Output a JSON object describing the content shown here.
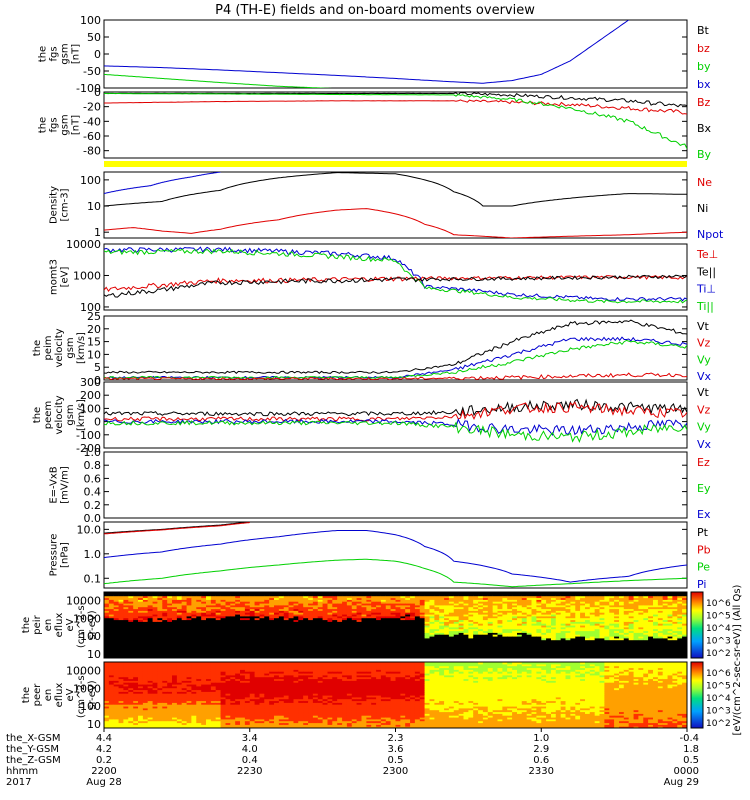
{
  "title": "P4 (TH-E) fields and on-board moments overview",
  "colors": {
    "black": "#000000",
    "red": "#e00000",
    "green": "#00d000",
    "blue": "#0000d0",
    "yellow": "#ffff00"
  },
  "chart_data": [
    {
      "id": "fgs-gsm",
      "type": "line",
      "ylabel": [
        "the",
        "fgs",
        "gsm",
        "[nT]"
      ],
      "ylim": [
        -100,
        100
      ],
      "yticks": [
        "100",
        "50",
        "0",
        "-50",
        "-100"
      ],
      "ytick_values": [
        100,
        50,
        0,
        -50,
        -100
      ],
      "legend": [
        {
          "text": "Bt",
          "color": "black"
        },
        {
          "text": "bz",
          "color": "red"
        },
        {
          "text": "by",
          "color": "green"
        },
        {
          "text": "bx",
          "color": "blue"
        }
      ],
      "series": [
        {
          "color": "blue",
          "x": [
            0,
            0.1,
            0.2,
            0.3,
            0.4,
            0.5,
            0.6,
            0.65,
            0.7,
            0.75,
            0.8,
            0.85,
            0.9
          ],
          "y": [
            -35,
            -40,
            -47,
            -55,
            -63,
            -72,
            -82,
            -86,
            -78,
            -60,
            -20,
            40,
            100
          ]
        },
        {
          "color": "green",
          "x": [
            0,
            0.1,
            0.2,
            0.3,
            0.4
          ],
          "y": [
            -60,
            -72,
            -84,
            -95,
            -102
          ]
        }
      ]
    },
    {
      "id": "fgs-gsm-zoom",
      "type": "line",
      "ylabel": [
        "the",
        "fgs",
        "gsm",
        "[nT]"
      ],
      "ylim": [
        -90,
        0
      ],
      "yticks": [
        "0",
        "-20",
        "-40",
        "-60",
        "-80"
      ],
      "ytick_values": [
        0,
        -20,
        -40,
        -60,
        -80
      ],
      "legend": [
        {
          "text": "Bz",
          "color": "red"
        },
        {
          "text": "Bx",
          "color": "black"
        },
        {
          "text": "By",
          "color": "green"
        }
      ],
      "series": [
        {
          "color": "red",
          "x": [
            0,
            0.2,
            0.4,
            0.6,
            0.7,
            0.8,
            0.9,
            1
          ],
          "y": [
            -15,
            -13,
            -12,
            -12,
            -14,
            -17,
            -22,
            -28
          ]
        },
        {
          "color": "black",
          "x": [
            0,
            0.3,
            0.6,
            0.7,
            0.8,
            0.9,
            1
          ],
          "y": [
            -2,
            -2,
            -2,
            -4,
            -8,
            -12,
            -20
          ]
        },
        {
          "color": "green",
          "x": [
            0,
            0.3,
            0.6,
            0.7,
            0.8,
            0.9,
            1
          ],
          "y": [
            -2,
            -3,
            -4,
            -10,
            -22,
            -40,
            -75
          ]
        }
      ]
    },
    {
      "id": "density",
      "type": "line",
      "ylabel": [
        "Density",
        "[cm-3]"
      ],
      "scale": "log",
      "ylim": [
        0.6,
        200
      ],
      "yticks": [
        "100",
        "10",
        "1"
      ],
      "ytick_values": [
        100,
        10,
        1
      ],
      "legend": [
        {
          "text": "Ne",
          "color": "red"
        },
        {
          "text": "Ni",
          "color": "black"
        },
        {
          "text": "Npot",
          "color": "blue"
        }
      ],
      "series": [
        {
          "color": "black",
          "x": [
            0,
            0.1,
            0.2,
            0.3,
            0.4,
            0.5,
            0.55,
            0.6,
            0.65,
            0.7,
            0.8,
            0.9,
            1
          ],
          "y": [
            10,
            15,
            40,
            120,
            190,
            170,
            100,
            35,
            10,
            10,
            20,
            30,
            28
          ]
        },
        {
          "color": "red",
          "x": [
            0,
            0.05,
            0.1,
            0.15,
            0.2,
            0.3,
            0.4,
            0.45,
            0.5,
            0.55,
            0.6,
            0.7,
            0.8,
            0.9,
            1
          ],
          "y": [
            1.2,
            1.5,
            1.1,
            0.9,
            1.3,
            3,
            7,
            8,
            5,
            2,
            0.8,
            0.6,
            0.7,
            0.8,
            1
          ]
        },
        {
          "color": "blue",
          "x": [
            0,
            0.08,
            0.15,
            0.2
          ],
          "y": [
            30,
            60,
            130,
            200
          ]
        }
      ]
    },
    {
      "id": "mom-temp",
      "type": "line",
      "ylabel": [
        "momt3",
        "[eV]"
      ],
      "scale": "log",
      "ylim": [
        80,
        10000
      ],
      "yticks": [
        "10000",
        "1000",
        "100"
      ],
      "ytick_values": [
        10000,
        1000,
        100
      ],
      "legend": [
        {
          "text": "Te⊥",
          "color": "red"
        },
        {
          "text": "Te||",
          "color": "black"
        },
        {
          "text": "Ti⊥",
          "color": "blue"
        },
        {
          "text": "Ti||",
          "color": "green"
        }
      ],
      "series": [
        {
          "color": "blue",
          "x": [
            0,
            0.2,
            0.4,
            0.5,
            0.52,
            0.55,
            0.7,
            0.85,
            1
          ],
          "y": [
            6500,
            6800,
            5000,
            3500,
            1600,
            450,
            250,
            180,
            180
          ]
        },
        {
          "color": "green",
          "x": [
            0,
            0.2,
            0.4,
            0.5,
            0.52,
            0.55,
            0.7,
            0.85,
            1
          ],
          "y": [
            5500,
            6000,
            4000,
            3000,
            1200,
            400,
            200,
            150,
            150
          ]
        },
        {
          "color": "red",
          "x": [
            0,
            0.1,
            0.2,
            0.3,
            0.5,
            0.7,
            0.9,
            1
          ],
          "y": [
            350,
            500,
            700,
            700,
            800,
            850,
            900,
            850
          ]
        },
        {
          "color": "black",
          "x": [
            0,
            0.1,
            0.2,
            0.3,
            0.5,
            0.7,
            0.9,
            1
          ],
          "y": [
            220,
            350,
            600,
            650,
            750,
            800,
            900,
            950
          ]
        }
      ]
    },
    {
      "id": "peim-velocity",
      "type": "line",
      "ylabel": [
        "the",
        "peim",
        "velocity",
        "gsm",
        "[km/s]"
      ],
      "ylim": [
        0,
        25
      ],
      "yticks": [
        "25",
        "20",
        "15",
        "10",
        "5",
        "0"
      ],
      "ytick_values": [
        25,
        20,
        15,
        10,
        5,
        0
      ],
      "legend": [
        {
          "text": "Vt",
          "color": "black"
        },
        {
          "text": "Vz",
          "color": "red"
        },
        {
          "text": "Vy",
          "color": "green"
        },
        {
          "text": "Vx",
          "color": "blue"
        }
      ],
      "series": [
        {
          "color": "black",
          "x": [
            0,
            0.5,
            0.6,
            0.7,
            0.8,
            0.9,
            1
          ],
          "y": [
            3,
            3,
            6,
            15,
            22,
            23,
            18
          ]
        },
        {
          "color": "blue",
          "x": [
            0,
            0.5,
            0.6,
            0.7,
            0.8,
            0.9,
            1
          ],
          "y": [
            1,
            1,
            4,
            10,
            16,
            16,
            14
          ]
        },
        {
          "color": "green",
          "x": [
            0,
            0.5,
            0.6,
            0.7,
            0.8,
            0.9,
            1
          ],
          "y": [
            1,
            1,
            3,
            7,
            12,
            15,
            13
          ]
        },
        {
          "color": "red",
          "x": [
            0,
            0.5,
            0.7,
            0.9,
            1
          ],
          "y": [
            0.5,
            0.5,
            1,
            2,
            2
          ]
        }
      ]
    },
    {
      "id": "peem-velocity",
      "type": "line",
      "ylabel": [
        "the",
        "peem",
        "velocity",
        "gsm",
        "[km/s]"
      ],
      "ylim": [
        -200,
        300
      ],
      "yticks": [
        "300",
        "200",
        "100",
        "0",
        "-100",
        "-200"
      ],
      "ytick_values": [
        300,
        200,
        100,
        0,
        -100,
        -200
      ],
      "legend": [
        {
          "text": "Vt",
          "color": "black"
        },
        {
          "text": "Vz",
          "color": "red"
        },
        {
          "text": "Vy",
          "color": "green"
        },
        {
          "text": "Vx",
          "color": "blue"
        }
      ],
      "series": [
        {
          "color": "black",
          "x": [
            0,
            0.5,
            0.6,
            0.7,
            0.8,
            0.9,
            1
          ],
          "y": [
            60,
            60,
            70,
            110,
            130,
            110,
            90
          ]
        },
        {
          "color": "red",
          "x": [
            0,
            0.5,
            0.6,
            0.7,
            0.8,
            0.9,
            1
          ],
          "y": [
            20,
            20,
            40,
            100,
            110,
            80,
            60
          ]
        },
        {
          "color": "blue",
          "x": [
            0,
            0.5,
            0.6,
            0.7,
            0.8,
            0.9,
            1
          ],
          "y": [
            0,
            0,
            -20,
            -60,
            -70,
            -40,
            -10
          ]
        },
        {
          "color": "green",
          "x": [
            0,
            0.5,
            0.6,
            0.7,
            0.8,
            0.9,
            1
          ],
          "y": [
            -10,
            -10,
            -40,
            -100,
            -120,
            -80,
            -30
          ]
        }
      ]
    },
    {
      "id": "e-vxb",
      "type": "line",
      "ylabel": [
        "E=-VxB",
        "[mV/m]"
      ],
      "ylim": [
        0,
        1
      ],
      "yticks": [
        "1.0",
        "0.8",
        "0.6",
        "0.4",
        "0.2",
        "0.0"
      ],
      "ytick_values": [
        1.0,
        0.8,
        0.6,
        0.4,
        0.2,
        0.0
      ],
      "legend": [
        {
          "text": "Ez",
          "color": "red"
        },
        {
          "text": "Ey",
          "color": "green"
        },
        {
          "text": "Ex",
          "color": "blue"
        }
      ],
      "series": []
    },
    {
      "id": "pressure",
      "type": "line",
      "ylabel": [
        "Pressure",
        "[nPa]"
      ],
      "scale": "log",
      "ylim": [
        0.04,
        20
      ],
      "yticks": [
        "10.0",
        "1.0",
        "0.1"
      ],
      "ytick_values": [
        10,
        1,
        0.1
      ],
      "legend": [
        {
          "text": "Pt",
          "color": "black"
        },
        {
          "text": "Pb",
          "color": "red"
        },
        {
          "text": "Pe",
          "color": "green"
        },
        {
          "text": "Pi",
          "color": "blue"
        }
      ],
      "series": [
        {
          "color": "black",
          "x": [
            0,
            0.1,
            0.2,
            0.25
          ],
          "y": [
            7,
            10,
            15,
            20
          ]
        },
        {
          "color": "red",
          "x": [
            0,
            0.1,
            0.2,
            0.25
          ],
          "y": [
            6.5,
            9.5,
            14,
            19
          ]
        },
        {
          "color": "blue",
          "x": [
            0,
            0.1,
            0.2,
            0.3,
            0.4,
            0.45,
            0.5,
            0.55,
            0.6,
            0.7,
            0.8,
            0.9,
            1
          ],
          "y": [
            0.7,
            1.2,
            2.5,
            5,
            9,
            9,
            6,
            2,
            0.5,
            0.15,
            0.07,
            0.12,
            0.35
          ]
        },
        {
          "color": "green",
          "x": [
            0,
            0.1,
            0.2,
            0.3,
            0.4,
            0.45,
            0.5,
            0.55,
            0.6,
            0.7,
            0.8,
            0.9,
            1
          ],
          "y": [
            0.06,
            0.1,
            0.2,
            0.35,
            0.55,
            0.6,
            0.5,
            0.25,
            0.07,
            0.045,
            0.06,
            0.08,
            0.1
          ]
        }
      ]
    },
    {
      "id": "peir-spectrogram",
      "type": "heatmap",
      "ylabel": [
        "the",
        "peir",
        "en",
        "eflux",
        "eV",
        "(cm^2-s-",
        "sr-eV)"
      ],
      "yticks": [
        "10000",
        "1000",
        "100",
        "10"
      ],
      "ytick_values": [
        10000,
        1000,
        100,
        10
      ]
    },
    {
      "id": "peer-spectrogram",
      "type": "heatmap",
      "ylabel": [
        "the",
        "peer",
        "en",
        "eflux",
        "eV",
        "(cm^2-s-",
        "sr-eV)"
      ],
      "yticks": [
        "10000",
        "1000",
        "100",
        "10"
      ],
      "ytick_values": [
        10000,
        1000,
        100,
        10
      ]
    }
  ],
  "colorbar": {
    "label": "[eV/(cm^2-sec-sr-eV)] (All Qs)",
    "ticks_top": [
      "10^6",
      "10^5",
      "10^4",
      "10^3",
      "10^2"
    ],
    "ticks_bottom": [
      "10^6",
      "10^5",
      "10^4",
      "10^3",
      "10^2"
    ]
  },
  "footer": {
    "row_labels": [
      "the_X-GSM",
      "the_Y-GSM",
      "the_Z-GSM",
      "hhmm",
      "2017"
    ],
    "columns": [
      {
        "values": [
          "4.4",
          "4.2",
          "0.2",
          "2200",
          "Aug 28"
        ]
      },
      {
        "values": [
          "3.4",
          "4.0",
          "0.4",
          "2230",
          ""
        ]
      },
      {
        "values": [
          "2.3",
          "3.6",
          "0.5",
          "2300",
          ""
        ]
      },
      {
        "values": [
          "1.0",
          "2.9",
          "0.6",
          "2330",
          ""
        ]
      },
      {
        "values": [
          "-0.4",
          "1.8",
          "0.5",
          "0000",
          "Aug 29"
        ]
      }
    ]
  }
}
